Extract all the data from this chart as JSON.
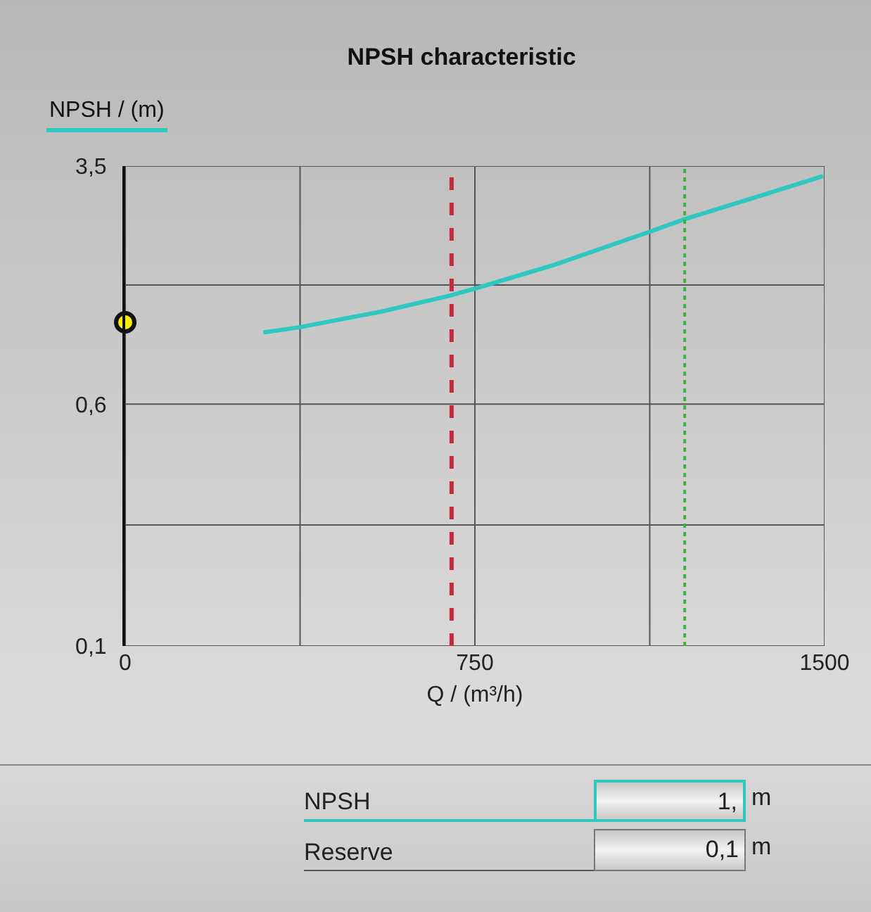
{
  "chart_data": {
    "type": "line",
    "title": "NPSH characteristic",
    "xlabel": "Q / (m³/h)",
    "ylabel": "NPSH / (m)",
    "series": [
      {
        "color": "#2ec8c0",
        "marker": "none",
        "x": [
          296,
          373,
          548,
          696,
          749,
          918,
          1124,
          1199,
          1342,
          1497
        ],
        "values": [
          1.02,
          1.06,
          1.19,
          1.34,
          1.41,
          1.68,
          2.15,
          2.36,
          2.75,
          3.25
        ]
      },
      {
        "type": "scatter",
        "color": "#ffee00",
        "marker": "circle",
        "x": [
          0
        ],
        "values": [
          1.1
        ]
      }
    ],
    "xlim": [
      0,
      1500
    ],
    "xticks": [
      0,
      {
        "value": 375,
        "label": null
      },
      750,
      {
        "value": 1125,
        "label": null
      },
      1500
    ],
    "ylim": [
      0.1,
      3.5
    ],
    "yticks": [
      {
        "value": 0.1,
        "label": "0,1"
      },
      {
        "value": 0.245,
        "label": null
      },
      {
        "value": 0.6,
        "label": "0,6"
      },
      {
        "value": 1.45,
        "label": null
      },
      {
        "value": 3.5,
        "label": "3,5"
      }
    ],
    "log": "y",
    "grid": true,
    "ref_lines": [
      {
        "axis": "x",
        "value": 700,
        "color": "#c8283c",
        "line_style": "dashed"
      },
      {
        "axis": "x",
        "value": 1200,
        "color": "#3cb43c",
        "line_style": "dotted"
      }
    ],
    "annotations": [
      "NPSH",
      "1,",
      "m",
      "Reserve",
      "0,1",
      "m"
    ]
  }
}
